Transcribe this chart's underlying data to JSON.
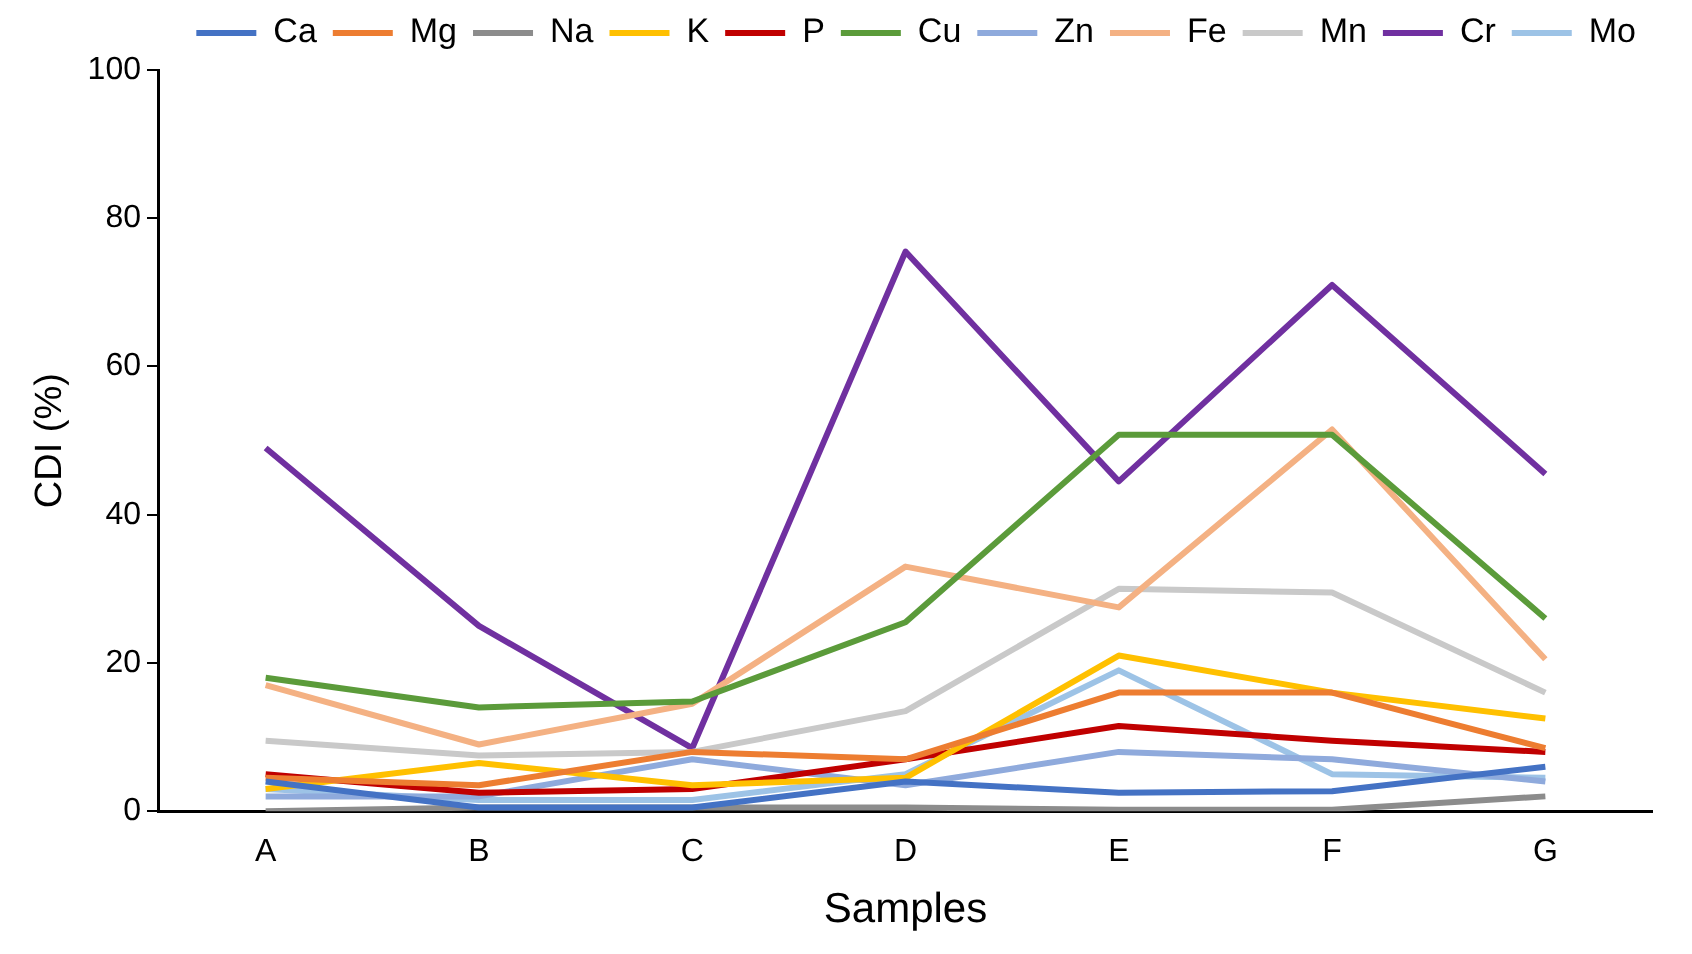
{
  "chart_data": {
    "type": "line",
    "xlabel": "Samples",
    "ylabel": "CDI (%)",
    "categories": [
      "A",
      "B",
      "C",
      "D",
      "E",
      "F",
      "G"
    ],
    "ylim": [
      0,
      100
    ],
    "yticks": [
      0,
      20,
      40,
      60,
      80,
      100
    ],
    "grid": false,
    "legend": "top",
    "marker": "none",
    "line_style": "solid",
    "series": [
      {
        "name": "Ca",
        "color": "#4472c4",
        "values": [
          4,
          0.5,
          0.5,
          4,
          2.5,
          2.7,
          6
        ]
      },
      {
        "name": "Mg",
        "color": "#ed7d31",
        "values": [
          4.5,
          3.5,
          8,
          7,
          16,
          16,
          8.5
        ]
      },
      {
        "name": "Na",
        "color": "#8c8c8c",
        "values": [
          0,
          0.5,
          0.5,
          0.5,
          0.2,
          0.2,
          2
        ]
      },
      {
        "name": "K",
        "color": "#ffc000",
        "values": [
          3,
          6.5,
          3.5,
          4.5,
          21,
          16,
          12.5
        ]
      },
      {
        "name": "P",
        "color": "#c00000",
        "values": [
          5,
          2.5,
          3,
          7,
          11.5,
          9.5,
          8
        ]
      },
      {
        "name": "Cu",
        "color": "#5b9b3a",
        "values": [
          18,
          14,
          14.8,
          25.5,
          50.8,
          50.8,
          26
        ]
      },
      {
        "name": "Zn",
        "color": "#8faadc",
        "values": [
          2,
          2,
          7,
          3.5,
          8,
          7,
          4
        ]
      },
      {
        "name": "Fe",
        "color": "#f4b183",
        "values": [
          17,
          9,
          14.5,
          33,
          27.5,
          51.5,
          20.5
        ]
      },
      {
        "name": "Mn",
        "color": "#c9c9c9",
        "values": [
          9.5,
          7.5,
          8,
          13.5,
          30,
          29.5,
          16
        ]
      },
      {
        "name": "Cr",
        "color": "#7030a0",
        "values": [
          49,
          25,
          8.5,
          75.5,
          44.5,
          71,
          45.5
        ]
      },
      {
        "name": "Mo",
        "color": "#9dc3e6",
        "values": [
          3,
          1.5,
          1.5,
          5,
          19,
          5,
          4.5
        ]
      }
    ]
  }
}
